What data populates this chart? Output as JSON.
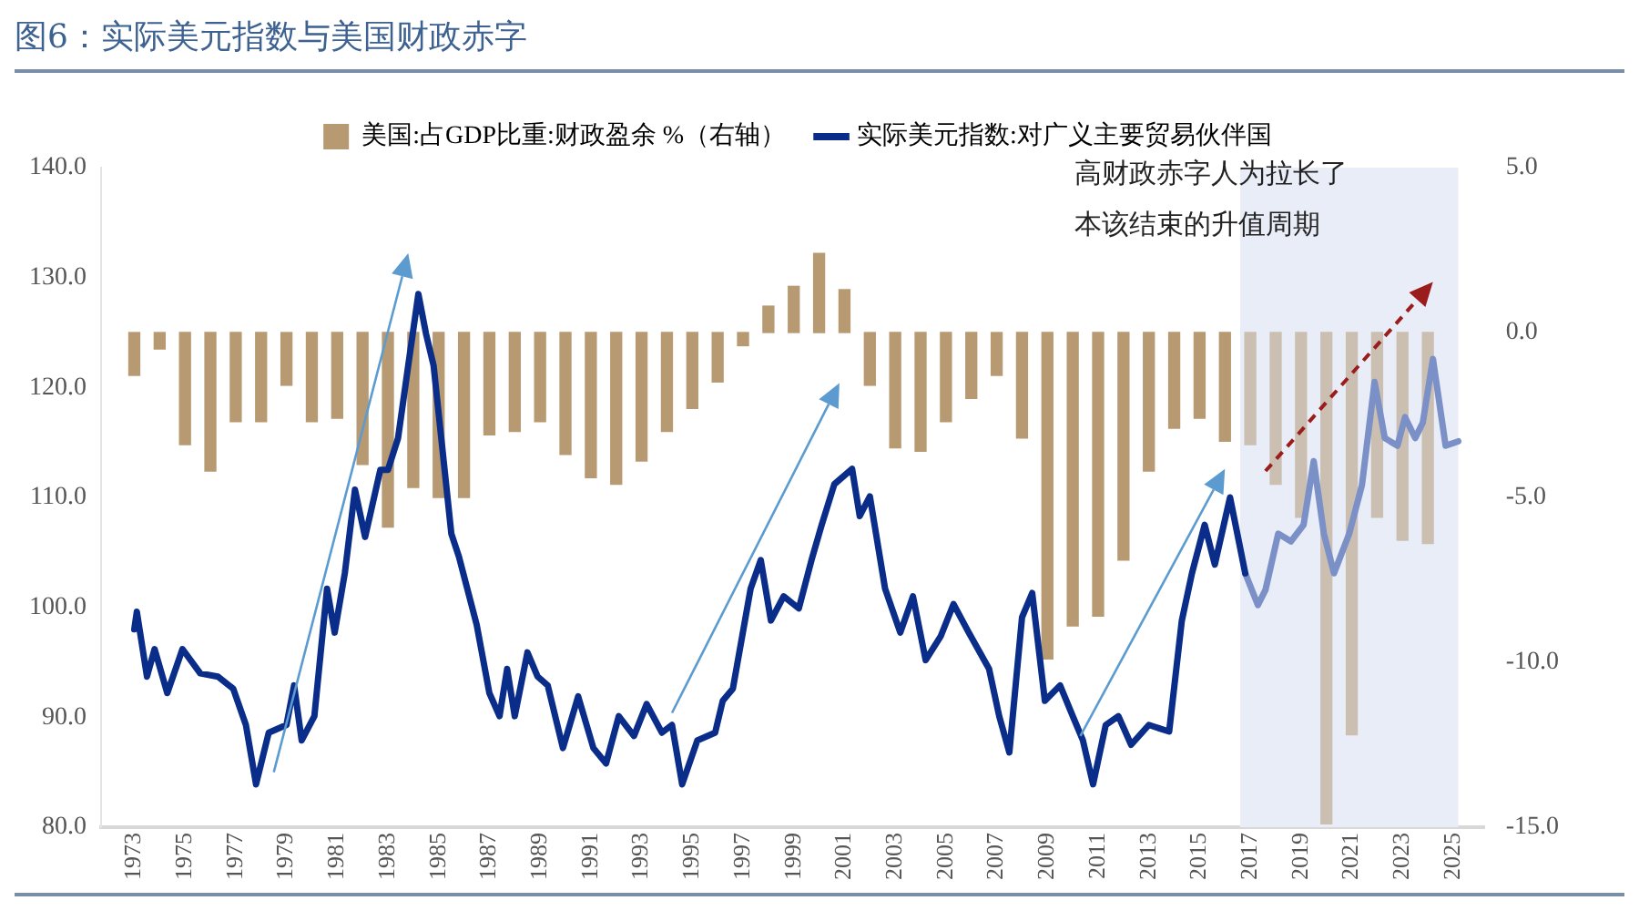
{
  "chart_data": {
    "type": "bar",
    "title": "图6：实际美元指数与美国财政赤字",
    "legend": "top",
    "grid": false,
    "marker": "none",
    "xlim": [
      1972.7,
      2025.2
    ],
    "xticks": [
      1973,
      1975,
      1977,
      1979,
      1981,
      1983,
      1985,
      1987,
      1989,
      1991,
      1993,
      1995,
      1997,
      1999,
      2001,
      2003,
      2005,
      2007,
      2009,
      2011,
      2013,
      2015,
      2017,
      2019,
      2021,
      2023,
      2025
    ],
    "ylim": [
      80,
      140
    ],
    "yticks": [
      {
        "value": 80,
        "label": "80.0"
      },
      {
        "value": 90,
        "label": "90.0"
      },
      {
        "value": 100,
        "label": "100.0"
      },
      {
        "value": 110,
        "label": "110.0"
      },
      {
        "value": 120,
        "label": "120.0"
      },
      {
        "value": 130,
        "label": "130.0"
      },
      {
        "value": 140,
        "label": "140.0"
      }
    ],
    "y2lim": [
      -15,
      5
    ],
    "y2ticks": [
      {
        "value": -15,
        "label": "-15.0"
      },
      {
        "value": -10,
        "label": "-10.0"
      },
      {
        "value": -5,
        "label": "-5.0"
      },
      {
        "value": 0,
        "label": "0.0"
      },
      {
        "value": 5,
        "label": "5.0"
      }
    ],
    "bands": [
      {
        "axis": "x",
        "from": 2016.6,
        "to": 2025.2,
        "color": "#e9edf7"
      }
    ],
    "annotations": [
      "高财政赤字人为拉长了",
      "本该结束的升值周期"
    ],
    "series": [
      {
        "axis": "y2",
        "name": "美国:占GDP比重:财政盈余 %（右轴）",
        "color": "#b89a72",
        "x": [
          1973,
          1974,
          1975,
          1976,
          1977,
          1978,
          1979,
          1980,
          1981,
          1982,
          1983,
          1984,
          1985,
          1986,
          1987,
          1988,
          1989,
          1990,
          1991,
          1992,
          1993,
          1994,
          1995,
          1996,
          1997,
          1998,
          1999,
          2000,
          2001,
          2002,
          2003,
          2004,
          2005,
          2006,
          2007,
          2008,
          2009,
          2010,
          2011,
          2012,
          2013,
          2014,
          2015,
          2016,
          2017,
          2018,
          2019,
          2020,
          2021,
          2022,
          2023,
          2024
        ],
        "values": [
          -1.3,
          -0.5,
          -3.4,
          -4.2,
          -2.7,
          -2.7,
          -1.6,
          -2.7,
          -2.6,
          -4.0,
          -5.9,
          -4.7,
          -5.0,
          -5.0,
          -3.1,
          -3.0,
          -2.7,
          -3.7,
          -4.4,
          -4.6,
          -3.9,
          -3.0,
          -2.3,
          -1.5,
          -0.4,
          0.8,
          1.4,
          2.4,
          1.3,
          -1.6,
          -3.5,
          -3.6,
          -2.7,
          -2.0,
          -1.3,
          -3.2,
          -9.9,
          -8.9,
          -8.6,
          -6.9,
          -4.2,
          -2.9,
          -2.6,
          -3.3,
          -3.4,
          -4.6,
          -5.6,
          -14.9,
          -12.2,
          -5.6,
          -6.3,
          -6.4
        ],
        "colors": [
          "#b89a72",
          "#b89a72",
          "#b89a72",
          "#b89a72",
          "#b89a72",
          "#b89a72",
          "#b89a72",
          "#b89a72",
          "#b89a72",
          "#b89a72",
          "#b89a72",
          "#b89a72",
          "#b89a72",
          "#b89a72",
          "#b89a72",
          "#b89a72",
          "#b89a72",
          "#b89a72",
          "#b89a72",
          "#b89a72",
          "#b89a72",
          "#b89a72",
          "#b89a72",
          "#b89a72",
          "#b89a72",
          "#b89a72",
          "#b89a72",
          "#b89a72",
          "#b89a72",
          "#b89a72",
          "#b89a72",
          "#b89a72",
          "#b89a72",
          "#b89a72",
          "#b89a72",
          "#b89a72",
          "#b89a72",
          "#b89a72",
          "#b89a72",
          "#b89a72",
          "#b89a72",
          "#b89a72",
          "#b89a72",
          "#b89a72",
          "#cbbfb2",
          "#cbbfb2",
          "#cbbfb2",
          "#cbbfb2",
          "#cbbfb2",
          "#cbbfb2",
          "#cbbfb2",
          "#cbbfb2"
        ]
      },
      {
        "type": "line",
        "name": "实际美元指数:对广义主要贸易伙伴国",
        "color": "#0b2d8a",
        "x": [
          1973.0,
          1973.1,
          1973.5,
          1973.8,
          1974.3,
          1974.9,
          1975.6,
          1976.3,
          1976.9,
          1977.4,
          1977.8,
          1978.3,
          1979.0,
          1979.3,
          1979.6,
          1980.1,
          1980.6,
          1980.9,
          1981.3,
          1981.7,
          1982.1,
          1982.7,
          1983.0,
          1983.4,
          1983.8,
          1984.2,
          1984.5,
          1984.8,
          1985.5,
          1985.8,
          1986.5,
          1987.0,
          1987.4,
          1987.7,
          1988.0,
          1988.5,
          1988.9,
          1989.3,
          1989.9,
          1990.5,
          1991.1,
          1991.6,
          1992.1,
          1992.7,
          1993.2,
          1993.8,
          1994.2,
          1994.6,
          1995.2,
          1995.9,
          1996.2,
          1996.6,
          1997.3,
          1997.7,
          1998.1,
          1998.6,
          1999.2,
          1999.7,
          2000.1,
          2000.6,
          2001.3,
          2001.6,
          2002.0,
          2002.6,
          2003.2,
          2003.7,
          2004.2,
          2004.8,
          2005.3,
          2005.9,
          2006.7,
          2007.1,
          2007.5,
          2008.0,
          2008.4,
          2008.9,
          2009.5,
          2010.0,
          2010.4,
          2010.8,
          2011.3,
          2011.8,
          2012.3,
          2013.0,
          2013.8,
          2014.3,
          2014.7,
          2015.2,
          2015.6,
          2016.2,
          2016.8
        ],
        "values": [
          98.0,
          99.6,
          93.7,
          96.2,
          92.2,
          96.2,
          94.0,
          93.7,
          92.6,
          89.3,
          83.9,
          88.6,
          89.3,
          92.9,
          87.9,
          90.1,
          101.7,
          97.7,
          103.1,
          110.7,
          106.4,
          112.5,
          112.5,
          115.4,
          122.0,
          128.5,
          124.9,
          122.0,
          106.7,
          104.6,
          98.4,
          92.2,
          90.1,
          94.4,
          90.1,
          95.9,
          93.7,
          92.9,
          87.2,
          91.9,
          87.2,
          85.8,
          90.1,
          88.3,
          91.2,
          88.6,
          89.3,
          83.9,
          87.9,
          88.6,
          91.5,
          92.6,
          101.7,
          104.3,
          98.8,
          101.0,
          99.9,
          104.3,
          107.5,
          111.2,
          112.6,
          108.3,
          110.1,
          101.7,
          97.7,
          101.0,
          95.2,
          97.4,
          100.3,
          97.7,
          94.4,
          90.1,
          86.8,
          99.1,
          101.3,
          91.5,
          92.9,
          90.1,
          87.9,
          83.9,
          89.3,
          90.1,
          87.5,
          89.3,
          88.7,
          98.8,
          103.1,
          107.5,
          103.9,
          110.0,
          103.1
        ]
      },
      {
        "type": "line",
        "color": "#7b90c6",
        "x": [
          2016.8,
          2017.3,
          2017.6,
          2018.1,
          2018.6,
          2019.1,
          2019.5,
          2019.9,
          2020.3,
          2020.9,
          2021.4,
          2021.9,
          2022.3,
          2022.8,
          2023.1,
          2023.5,
          2023.8,
          2024.2,
          2024.7,
          2025.2
        ],
        "values": [
          103.1,
          100.2,
          101.6,
          106.7,
          106.0,
          107.5,
          113.3,
          106.7,
          103.1,
          106.7,
          111.1,
          120.5,
          115.4,
          114.7,
          117.3,
          115.4,
          116.8,
          122.6,
          114.7,
          115.1
        ]
      }
    ]
  }
}
